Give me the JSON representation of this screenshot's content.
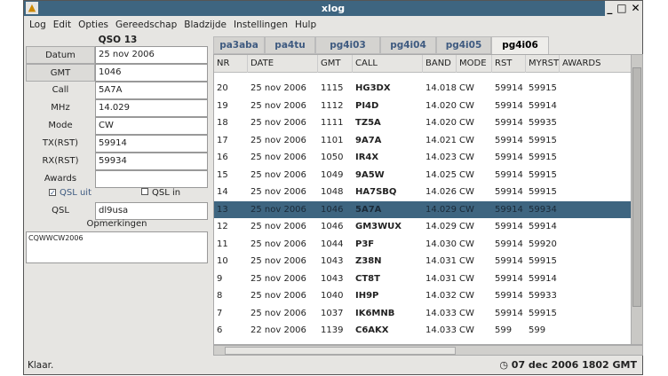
{
  "window": {
    "title": "xlog",
    "controls": [
      "_",
      "□",
      "✕"
    ]
  },
  "menu": [
    "Log",
    "Edit",
    "Opties",
    "Gereedschap",
    "Bladzijde",
    "Instellingen",
    "Hulp"
  ],
  "qso": {
    "title": "QSO 13",
    "fields": [
      {
        "label": "Datum",
        "value": "25 nov 2006",
        "button": true
      },
      {
        "label": "GMT",
        "value": "1046",
        "button": true
      },
      {
        "label": "Call",
        "value": "5A7A",
        "button": false
      },
      {
        "label": "MHz",
        "value": "14.029",
        "button": false
      },
      {
        "label": "Mode",
        "value": "CW",
        "button": false
      },
      {
        "label": "TX(RST)",
        "value": "59914",
        "button": false
      },
      {
        "label": "RX(RST)",
        "value": "59934",
        "button": false
      },
      {
        "label": "Awards",
        "value": "",
        "button": false
      }
    ],
    "qsl_out": {
      "label": "QSL uit",
      "checked": true
    },
    "qsl_in": {
      "label": "QSL in",
      "checked": false
    },
    "qsl": {
      "label": "QSL",
      "value": "dl9usa"
    },
    "remarks_label": "Opmerkingen",
    "remarks": "CQWWCW2006"
  },
  "tabs": [
    {
      "label": "pa3aba"
    },
    {
      "label": "pa4tu"
    },
    {
      "label": "pg4i03"
    },
    {
      "label": "pg4i04"
    },
    {
      "label": "pg4i05"
    },
    {
      "label": "pg4i06",
      "active": true
    }
  ],
  "columns": [
    "NR",
    "DATE",
    "GMT",
    "CALL",
    "BAND",
    "MODE",
    "RST",
    "MYRST",
    "AWARDS"
  ],
  "rows": [
    [
      "20",
      "25 nov 2006",
      "1115",
      "HG3DX",
      "14.018",
      "CW",
      "59914",
      "59915",
      ""
    ],
    [
      "19",
      "25 nov 2006",
      "1112",
      "PI4D",
      "14.020",
      "CW",
      "59914",
      "59914",
      ""
    ],
    [
      "18",
      "25 nov 2006",
      "1111",
      "TZ5A",
      "14.020",
      "CW",
      "59914",
      "59935",
      ""
    ],
    [
      "17",
      "25 nov 2006",
      "1101",
      "9A7A",
      "14.021",
      "CW",
      "59914",
      "59915",
      ""
    ],
    [
      "16",
      "25 nov 2006",
      "1050",
      "IR4X",
      "14.023",
      "CW",
      "59914",
      "59915",
      ""
    ],
    [
      "15",
      "25 nov 2006",
      "1049",
      "9A5W",
      "14.025",
      "CW",
      "59914",
      "59915",
      ""
    ],
    [
      "14",
      "25 nov 2006",
      "1048",
      "HA7SBQ",
      "14.026",
      "CW",
      "59914",
      "59915",
      ""
    ],
    [
      "13",
      "25 nov 2006",
      "1046",
      "5A7A",
      "14.029",
      "CW",
      "59914",
      "59934",
      ""
    ],
    [
      "12",
      "25 nov 2006",
      "1046",
      "GM3WUX",
      "14.029",
      "CW",
      "59914",
      "59914",
      ""
    ],
    [
      "11",
      "25 nov 2006",
      "1044",
      "P3F",
      "14.030",
      "CW",
      "59914",
      "59920",
      ""
    ],
    [
      "10",
      "25 nov 2006",
      "1043",
      "Z38N",
      "14.031",
      "CW",
      "59914",
      "59915",
      ""
    ],
    [
      "9",
      "25 nov 2006",
      "1043",
      "CT8T",
      "14.031",
      "CW",
      "59914",
      "59914",
      ""
    ],
    [
      "8",
      "25 nov 2006",
      "1040",
      "IH9P",
      "14.032",
      "CW",
      "59914",
      "59933",
      ""
    ],
    [
      "7",
      "25 nov 2006",
      "1037",
      "IK6MNB",
      "14.033",
      "CW",
      "59914",
      "59915",
      ""
    ],
    [
      "6",
      "22 nov 2006",
      "1139",
      "C6AKX",
      "14.033",
      "CW",
      "599",
      "599",
      ""
    ]
  ],
  "selected_row": "13",
  "status": {
    "text": "Klaar.",
    "clock": "07 dec 2006 1802 GMT"
  },
  "colors": {
    "titlebar": "#3e6580",
    "selection": "#3e6580",
    "tab_text": "#3e5a80"
  }
}
